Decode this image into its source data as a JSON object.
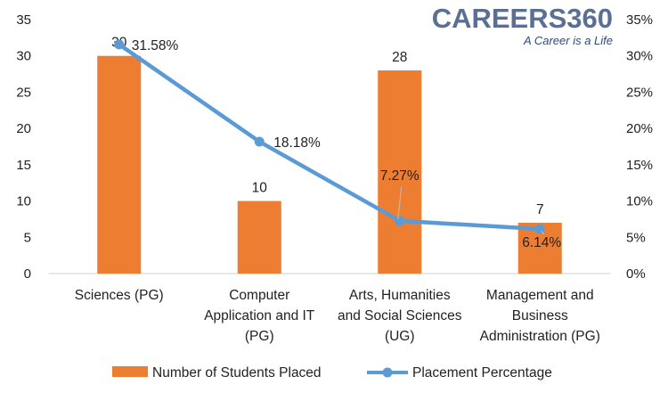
{
  "logo": {
    "text": "CAREERS360",
    "tagline": "A Career is a Life"
  },
  "chart_data": {
    "type": "bar",
    "categories": [
      [
        "Sciences (PG)"
      ],
      [
        "Computer",
        "Application and IT",
        "(PG)"
      ],
      [
        "Arts, Humanities",
        "and Social Sciences",
        "(UG)"
      ],
      [
        "Management and",
        "Business",
        "Administration (PG)"
      ]
    ],
    "series": [
      {
        "name": "Number of Students Placed",
        "type": "bar",
        "axis": "left",
        "color": "#ED7D31",
        "values": [
          30,
          10,
          28,
          7
        ],
        "labels": [
          "30",
          "10",
          "28",
          "7"
        ]
      },
      {
        "name": "Placement Percentage",
        "type": "line",
        "axis": "right",
        "color": "#5B9BD5",
        "values": [
          31.58,
          18.18,
          7.27,
          6.14
        ],
        "labels": [
          "31.58%",
          "18.18%",
          "7.27%",
          "6.14%"
        ]
      }
    ],
    "y_left": {
      "min": 0,
      "max": 35,
      "ticks": [
        "0",
        "5",
        "10",
        "15",
        "20",
        "25",
        "30",
        "35"
      ]
    },
    "y_right": {
      "min": 0,
      "max": 35,
      "ticks": [
        "0%",
        "5%",
        "10%",
        "15%",
        "20%",
        "25%",
        "30%",
        "35%"
      ]
    },
    "grid": false,
    "legend_position": "bottom"
  }
}
